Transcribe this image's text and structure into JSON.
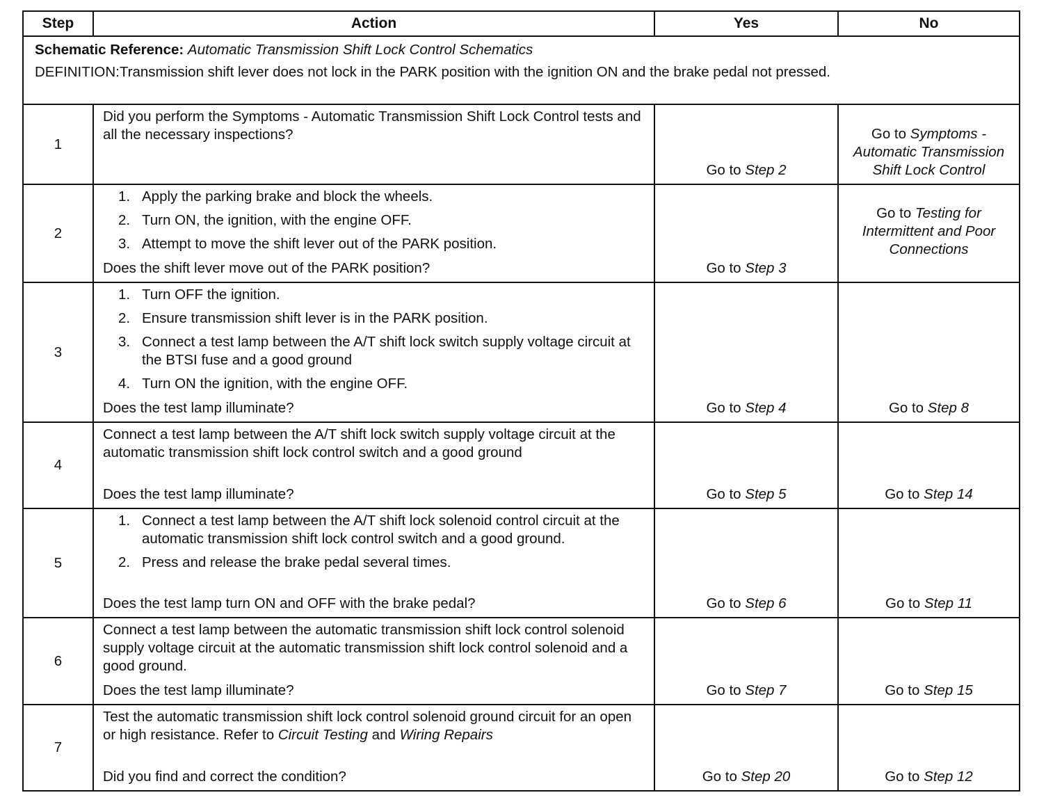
{
  "headers": {
    "step": "Step",
    "action": "Action",
    "yes": "Yes",
    "no": "No"
  },
  "schematic": {
    "label": "Schematic Reference:",
    "value": "Automatic Transmission Shift Lock Control Schematics",
    "definition": "DEFINITION:Transmission shift lever does not lock in the PARK position with the ignition ON and the brake pedal not pressed."
  },
  "goto": "Go to",
  "rows": [
    {
      "step": "1",
      "text": "Did you perform the Symptoms - Automatic Transmission Shift Lock Control tests and all the necessary inspections?",
      "yes": "Step 2",
      "no": "Symptoms - Automatic Transmission Shift Lock Control"
    },
    {
      "step": "2",
      "list": [
        "Apply the parking brake and block the wheels.",
        "Turn ON, the ignition, with the engine OFF.",
        "Attempt to move the shift lever out of the PARK position."
      ],
      "question": "Does the shift lever move out of the PARK position?",
      "yes": "Step 3",
      "no": "Testing for Intermittent and Poor Connections"
    },
    {
      "step": "3",
      "list": [
        "Turn OFF the ignition.",
        "Ensure transmission shift lever is in the PARK position.",
        "Connect a test lamp between the A/T shift lock switch supply voltage circuit at the BTSI fuse and a good ground",
        "Turn ON the ignition, with the engine OFF."
      ],
      "question": "Does the test lamp illuminate?",
      "yes": "Step 4",
      "no": "Step 8"
    },
    {
      "step": "4",
      "text": "Connect a test lamp between the A/T shift lock switch supply voltage circuit at the automatic transmission shift lock control switch and a good ground",
      "question": "Does the test lamp illuminate?",
      "yes": "Step 5",
      "no": "Step 14"
    },
    {
      "step": "5",
      "list": [
        "Connect a test lamp between the A/T shift lock solenoid control circuit at the automatic transmission shift lock control switch and a good ground.",
        "Press and release the brake pedal several times."
      ],
      "question": "Does the test lamp turn ON and OFF with the brake pedal?",
      "yes": "Step 6",
      "no": "Step 11"
    },
    {
      "step": "6",
      "text": "Connect a test lamp between the automatic transmission shift lock control solenoid supply voltage circuit at the automatic transmission shift lock control solenoid and a good ground.",
      "question": "Does the test lamp illuminate?",
      "yes": "Step 7",
      "no": "Step 15"
    },
    {
      "step": "7",
      "text": "Test the automatic transmission shift lock control solenoid ground circuit for an open or high resistance. Refer to",
      "ref1": "Circuit Testing",
      "and": "and",
      "ref2": "Wiring Repairs",
      "question": "Did you find and correct the condition?",
      "yes": "Step 20",
      "no": "Step 12"
    }
  ]
}
